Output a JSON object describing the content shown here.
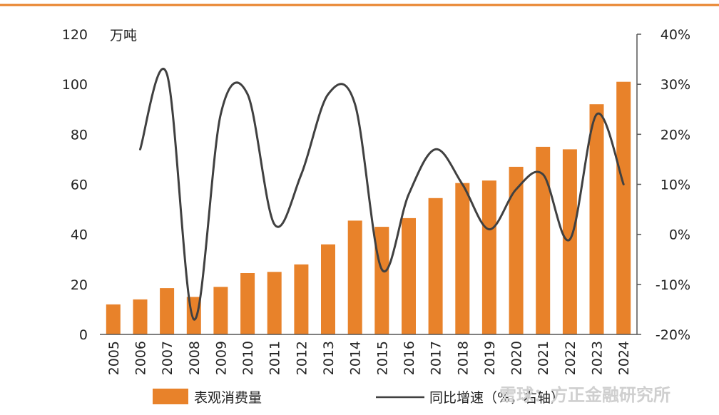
{
  "chart_data": {
    "type": "bar",
    "categories": [
      "2005",
      "2006",
      "2007",
      "2008",
      "2009",
      "2010",
      "2011",
      "2012",
      "2013",
      "2014",
      "2015",
      "2016",
      "2017",
      "2018",
      "2019",
      "2020",
      "2021",
      "2022",
      "2023",
      "2024"
    ],
    "series": [
      {
        "name": "表观消费量",
        "type": "bar",
        "axis": "left",
        "color": "#E8822A",
        "values": [
          12,
          14,
          18.5,
          15,
          19,
          24.5,
          25,
          28,
          36,
          45.5,
          43,
          46.5,
          54.5,
          60.5,
          61.5,
          67,
          75,
          74,
          92,
          101
        ]
      },
      {
        "name": "同比增速（%，右轴）",
        "type": "line",
        "axis": "right",
        "color": "#404040",
        "values": [
          null,
          17,
          32,
          -17,
          24,
          28,
          2,
          12,
          28,
          26,
          -7,
          8,
          17,
          10,
          1,
          9,
          12,
          -1,
          24,
          10
        ]
      }
    ],
    "y_left": {
      "unit": "万吨",
      "ylim": [
        0,
        120
      ],
      "ticks": [
        0,
        20,
        40,
        60,
        80,
        100,
        120
      ],
      "tick_labels": [
        "0",
        "20",
        "40",
        "60",
        "80",
        "100",
        "120"
      ]
    },
    "y_right": {
      "ylim": [
        -20,
        40
      ],
      "ticks": [
        -20,
        -10,
        0,
        10,
        20,
        30,
        40
      ],
      "tick_labels": [
        "-20%",
        "-10%",
        "0%",
        "10%",
        "20%",
        "30%",
        "40%"
      ]
    },
    "legend_position": "bottom",
    "grid": false,
    "top_rule_color": "#E8822A"
  },
  "watermark": "雪球：方正金融研究所"
}
